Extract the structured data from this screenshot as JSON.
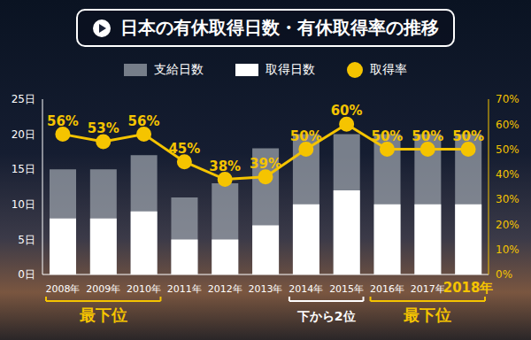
{
  "chart_data": {
    "type": "bar",
    "title": "日本の有休取得日数・有休取得率の推移",
    "categories": [
      "2008年",
      "2009年",
      "2010年",
      "2011年",
      "2012年",
      "2013年",
      "2014年",
      "2015年",
      "2016年",
      "2017年",
      "2018年"
    ],
    "series": [
      {
        "name": "支給日数",
        "type": "bar",
        "color": "#9aa0aa",
        "values": [
          15,
          15,
          17,
          11,
          13,
          18,
          20,
          20,
          20,
          20,
          20
        ]
      },
      {
        "name": "取得日数",
        "type": "bar",
        "color": "#ffffff",
        "values": [
          8,
          8,
          9,
          5,
          5,
          7,
          10,
          12,
          10,
          10,
          10
        ]
      },
      {
        "name": "取得率",
        "type": "line",
        "axis": "y2",
        "color": "#f5c400",
        "marker": "circle",
        "data_labels": true,
        "values": [
          56,
          53,
          56,
          45,
          38,
          39,
          50,
          60,
          50,
          50,
          50
        ],
        "value_labels": [
          "56%",
          "53%",
          "56%",
          "45%",
          "38%",
          "39%",
          "50%",
          "60%",
          "50%",
          "50%",
          "50%"
        ]
      }
    ],
    "ylim": [
      0,
      25
    ],
    "yticks": [
      {
        "value": 0,
        "label": "0日"
      },
      {
        "value": 5,
        "label": "5日"
      },
      {
        "value": 10,
        "label": "10日"
      },
      {
        "value": 15,
        "label": "15日"
      },
      {
        "value": 20,
        "label": "20日"
      },
      {
        "value": 25,
        "label": "25日"
      }
    ],
    "y2lim": [
      0,
      70
    ],
    "y2ticks": [
      {
        "value": 0,
        "label": "0%"
      },
      {
        "value": 10,
        "label": "10%"
      },
      {
        "value": 20,
        "label": "20%"
      },
      {
        "value": 30,
        "label": "30%"
      },
      {
        "value": 40,
        "label": "40%"
      },
      {
        "value": 50,
        "label": "50%"
      },
      {
        "value": 60,
        "label": "60%"
      },
      {
        "value": 70,
        "label": "70%"
      }
    ],
    "grid": false,
    "legend": "top",
    "annotations": [
      {
        "text": "最下位",
        "categories": [
          "2008年",
          "2010年"
        ]
      },
      {
        "text": "下から2位",
        "categories": [
          "2014年",
          "2015年"
        ]
      },
      {
        "text": "最下位",
        "categories": [
          "2016年",
          "2018年"
        ]
      }
    ]
  }
}
